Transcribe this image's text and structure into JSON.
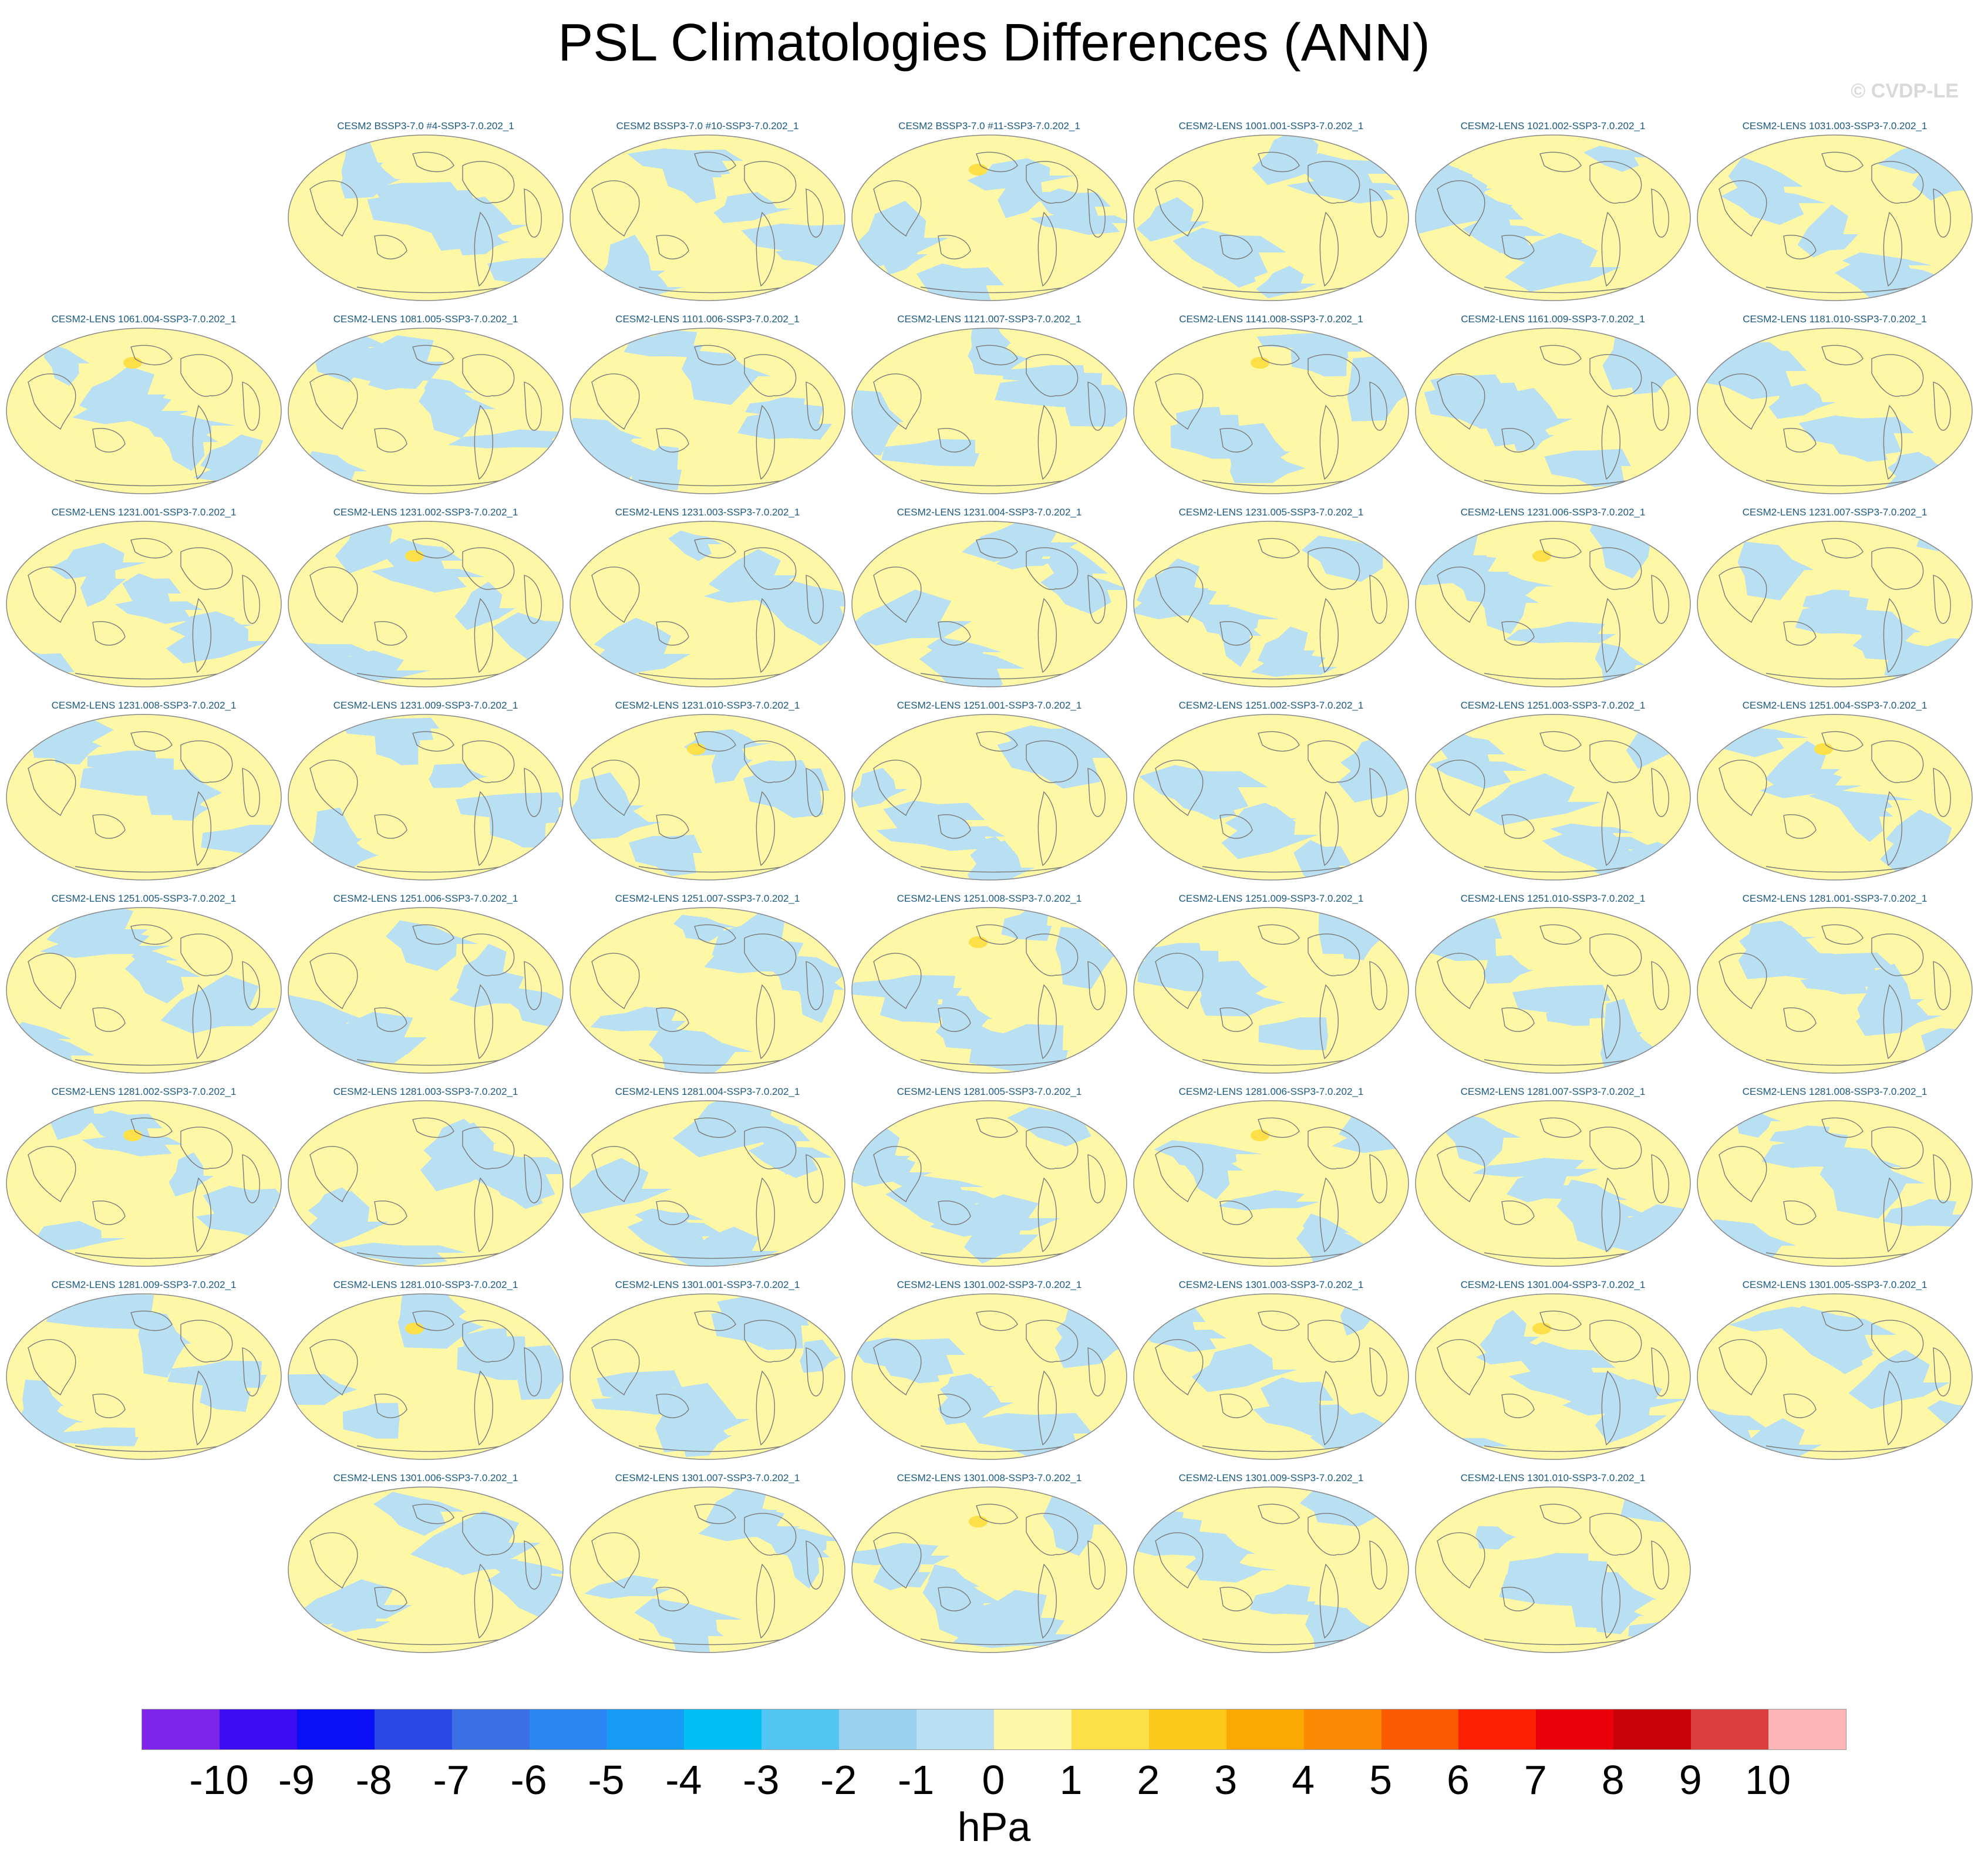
{
  "title": "PSL Climatologies Differences (ANN)",
  "watermark": "© CVDP-LE",
  "panels": [
    "CESM2 BSSP3-7.0 #4-SSP3-7.0.202_1",
    "CESM2 BSSP3-7.0 #10-SSP3-7.0.202_1",
    "CESM2 BSSP3-7.0 #11-SSP3-7.0.202_1",
    "CESM2-LENS 1001.001-SSP3-7.0.202_1",
    "CESM2-LENS 1021.002-SSP3-7.0.202_1",
    "CESM2-LENS 1031.003-SSP3-7.0.202_1",
    "CESM2-LENS 1061.004-SSP3-7.0.202_1",
    "CESM2-LENS 1081.005-SSP3-7.0.202_1",
    "CESM2-LENS 1101.006-SSP3-7.0.202_1",
    "CESM2-LENS 1121.007-SSP3-7.0.202_1",
    "CESM2-LENS 1141.008-SSP3-7.0.202_1",
    "CESM2-LENS 1161.009-SSP3-7.0.202_1",
    "CESM2-LENS 1181.010-SSP3-7.0.202_1",
    "CESM2-LENS 1231.001-SSP3-7.0.202_1",
    "CESM2-LENS 1231.002-SSP3-7.0.202_1",
    "CESM2-LENS 1231.003-SSP3-7.0.202_1",
    "CESM2-LENS 1231.004-SSP3-7.0.202_1",
    "CESM2-LENS 1231.005-SSP3-7.0.202_1",
    "CESM2-LENS 1231.006-SSP3-7.0.202_1",
    "CESM2-LENS 1231.007-SSP3-7.0.202_1",
    "CESM2-LENS 1231.008-SSP3-7.0.202_1",
    "CESM2-LENS 1231.009-SSP3-7.0.202_1",
    "CESM2-LENS 1231.010-SSP3-7.0.202_1",
    "CESM2-LENS 1251.001-SSP3-7.0.202_1",
    "CESM2-LENS 1251.002-SSP3-7.0.202_1",
    "CESM2-LENS 1251.003-SSP3-7.0.202_1",
    "CESM2-LENS 1251.004-SSP3-7.0.202_1",
    "CESM2-LENS 1251.005-SSP3-7.0.202_1",
    "CESM2-LENS 1251.006-SSP3-7.0.202_1",
    "CESM2-LENS 1251.007-SSP3-7.0.202_1",
    "CESM2-LENS 1251.008-SSP3-7.0.202_1",
    "CESM2-LENS 1251.009-SSP3-7.0.202_1",
    "CESM2-LENS 1251.010-SSP3-7.0.202_1",
    "CESM2-LENS 1281.001-SSP3-7.0.202_1",
    "CESM2-LENS 1281.002-SSP3-7.0.202_1",
    "CESM2-LENS 1281.003-SSP3-7.0.202_1",
    "CESM2-LENS 1281.004-SSP3-7.0.202_1",
    "CESM2-LENS 1281.005-SSP3-7.0.202_1",
    "CESM2-LENS 1281.006-SSP3-7.0.202_1",
    "CESM2-LENS 1281.007-SSP3-7.0.202_1",
    "CESM2-LENS 1281.008-SSP3-7.0.202_1",
    "CESM2-LENS 1281.009-SSP3-7.0.202_1",
    "CESM2-LENS 1281.010-SSP3-7.0.202_1",
    "CESM2-LENS 1301.001-SSP3-7.0.202_1",
    "CESM2-LENS 1301.002-SSP3-7.0.202_1",
    "CESM2-LENS 1301.003-SSP3-7.0.202_1",
    "CESM2-LENS 1301.004-SSP3-7.0.202_1",
    "CESM2-LENS 1301.005-SSP3-7.0.202_1",
    "CESM2-LENS 1301.006-SSP3-7.0.202_1",
    "CESM2-LENS 1301.007-SSP3-7.0.202_1",
    "CESM2-LENS 1301.008-SSP3-7.0.202_1",
    "CESM2-LENS 1301.009-SSP3-7.0.202_1",
    "CESM2-LENS 1301.010-SSP3-7.0.202_1"
  ],
  "map_colors": {
    "negative": "#b8dff2",
    "positive": "#fdf7a6",
    "strong_positive": "#fde047",
    "coastline": "#7a7a7a",
    "border": "#888888"
  },
  "colorbar": {
    "colors": [
      "#7d25ea",
      "#3b0df0",
      "#0a10f5",
      "#2a48e6",
      "#3a6fe6",
      "#2b85f2",
      "#169cf5",
      "#02bff5",
      "#52c5f2",
      "#99d1ee",
      "#b8dff2",
      "#fdf7a6",
      "#fde047",
      "#fbc81c",
      "#fca904",
      "#fb8a02",
      "#fc5a00",
      "#fd2000",
      "#e9000a",
      "#c80008",
      "#dc3e3e",
      "#feb5b5"
    ],
    "labels": [
      "-10",
      "-9",
      "-8",
      "-7",
      "-6",
      "-5",
      "-4",
      "-3",
      "-2",
      "-1",
      "0",
      "1",
      "2",
      "3",
      "4",
      "5",
      "6",
      "7",
      "8",
      "9",
      "10"
    ],
    "units": "hPa"
  }
}
